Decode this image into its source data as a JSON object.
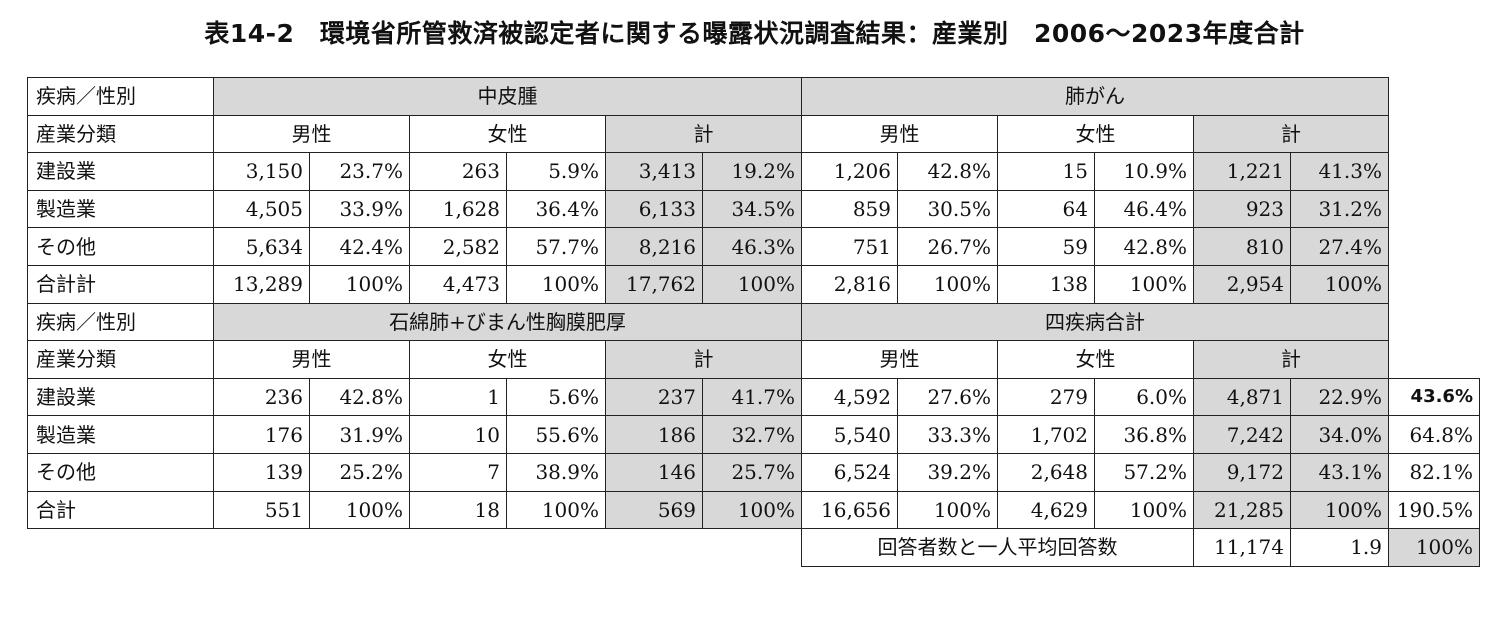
{
  "title": "表14-2　環境省所管救済被認定者に関する曝露状況調査結果：産業別　2006〜2023年度合計",
  "header_labels": {
    "disease_sex": "疾病／性別",
    "industry": "産業分類",
    "male": "男性",
    "female": "女性",
    "total": "計"
  },
  "sections": [
    {
      "diseases": [
        "中皮腫",
        "肺がん"
      ],
      "rows": [
        {
          "label": "建設業",
          "cells": [
            "3,150",
            "23.7%",
            "263",
            "5.9%",
            "3,413",
            "19.2%",
            "1,206",
            "42.8%",
            "15",
            "10.9%",
            "1,221",
            "41.3%"
          ],
          "extra": ""
        },
        {
          "label": "製造業",
          "cells": [
            "4,505",
            "33.9%",
            "1,628",
            "36.4%",
            "6,133",
            "34.5%",
            "859",
            "30.5%",
            "64",
            "46.4%",
            "923",
            "31.2%"
          ],
          "extra": ""
        },
        {
          "label": "その他",
          "cells": [
            "5,634",
            "42.4%",
            "2,582",
            "57.7%",
            "8,216",
            "46.3%",
            "751",
            "26.7%",
            "59",
            "42.8%",
            "810",
            "27.4%"
          ],
          "extra": ""
        },
        {
          "label": "合計計",
          "cells": [
            "13,289",
            "100%",
            "4,473",
            "100%",
            "17,762",
            "100%",
            "2,816",
            "100%",
            "138",
            "100%",
            "2,954",
            "100%"
          ],
          "extra": ""
        }
      ]
    },
    {
      "diseases": [
        "石綿肺+びまん性胸膜肥厚",
        "四疾病合計"
      ],
      "rows": [
        {
          "label": "建設業",
          "cells": [
            "236",
            "42.8%",
            "1",
            "5.6%",
            "237",
            "41.7%",
            "4,592",
            "27.6%",
            "279",
            "6.0%",
            "4,871",
            "22.9%"
          ],
          "extra": "43.6%"
        },
        {
          "label": "製造業",
          "cells": [
            "176",
            "31.9%",
            "10",
            "55.6%",
            "186",
            "32.7%",
            "5,540",
            "33.3%",
            "1,702",
            "36.8%",
            "7,242",
            "34.0%"
          ],
          "extra": "64.8%"
        },
        {
          "label": "その他",
          "cells": [
            "139",
            "25.2%",
            "7",
            "38.9%",
            "146",
            "25.7%",
            "6,524",
            "39.2%",
            "2,648",
            "57.2%",
            "9,172",
            "43.1%"
          ],
          "extra": "82.1%"
        },
        {
          "label": "合計",
          "cells": [
            "551",
            "100%",
            "18",
            "100%",
            "569",
            "100%",
            "16,656",
            "100%",
            "4,629",
            "100%",
            "21,285",
            "100%"
          ],
          "extra": "190.5%"
        }
      ]
    }
  ],
  "footer": {
    "label": "回答者数と一人平均回答数",
    "respondents": "11,174",
    "average": "1.9",
    "pct": "100%"
  }
}
